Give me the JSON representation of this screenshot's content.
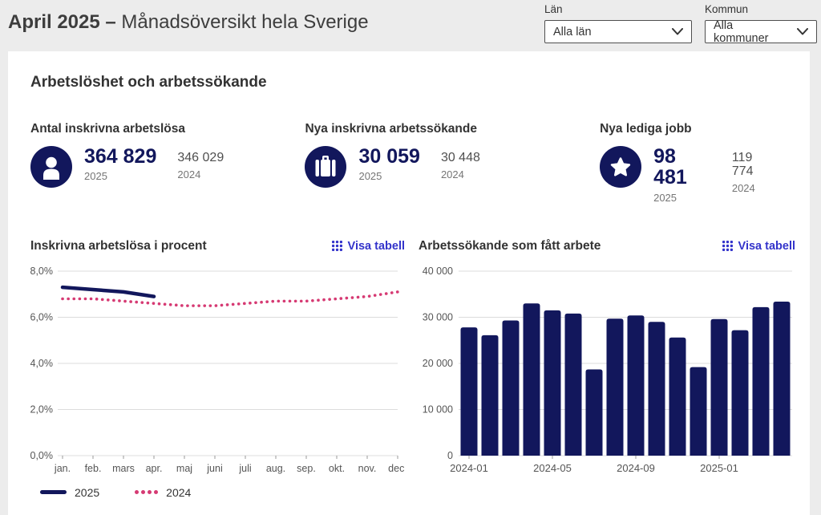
{
  "header": {
    "title_bold": "April 2025 –",
    "title_rest": "Månadsöversikt hela Sverige",
    "filters": [
      {
        "label": "Län",
        "value": "Alla län"
      },
      {
        "label": "Kommun",
        "value": "Alla kommuner"
      }
    ]
  },
  "section_title": "Arbetslöshet och arbetssökande",
  "kpis": [
    {
      "title": "Antal inskrivna arbetslösa",
      "icon": "person-icon",
      "current": "364 829",
      "current_year": "2025",
      "previous": "346 029",
      "previous_year": "2024"
    },
    {
      "title": "Nya inskrivna arbetssökande",
      "icon": "briefcase-icon",
      "current": "30 059",
      "current_year": "2025",
      "previous": "30 448",
      "previous_year": "2024"
    },
    {
      "title": "Nya lediga jobb",
      "icon": "star-icon",
      "current": "98 481",
      "current_year": "2025",
      "previous": "119 774",
      "previous_year": "2024"
    }
  ],
  "charts": {
    "visa_tabell_label": "Visa tabell"
  },
  "legend": [
    {
      "label": "2025",
      "style": "solid"
    },
    {
      "label": "2024",
      "style": "dotted"
    }
  ],
  "colors": {
    "navy": "#12175c",
    "pink": "#d63a73",
    "link": "#3434cb",
    "bg": "#ececec",
    "card": "#ffffff",
    "text": "#333333",
    "grid": "#dcdcdc"
  },
  "chart_data": [
    {
      "type": "line",
      "title": "Inskrivna arbetslösa i procent",
      "categories": [
        "jan.",
        "feb.",
        "mars",
        "apr.",
        "maj",
        "juni",
        "juli",
        "aug.",
        "sep.",
        "okt.",
        "nov.",
        "dec."
      ],
      "series": [
        {
          "name": "2025",
          "values": [
            7.3,
            7.2,
            7.1,
            6.9
          ],
          "color": "#12175c",
          "style": "solid"
        },
        {
          "name": "2024",
          "values": [
            6.8,
            6.8,
            6.7,
            6.6,
            6.5,
            6.5,
            6.6,
            6.7,
            6.7,
            6.8,
            6.9,
            7.1
          ],
          "color": "#d63a73",
          "style": "dotted"
        }
      ],
      "ylim": [
        0,
        8
      ],
      "yticks": [
        "0,0%",
        "2,0%",
        "4,0%",
        "6,0%",
        "8,0%"
      ],
      "grid": true,
      "legend_position": "bottom-left"
    },
    {
      "type": "bar",
      "title": "Arbetssökande som fått arbete",
      "categories": [
        "2024-01",
        "2024-02",
        "2024-03",
        "2024-04",
        "2024-05",
        "2024-06",
        "2024-07",
        "2024-08",
        "2024-09",
        "2024-10",
        "2024-11",
        "2024-12",
        "2025-01",
        "2025-02",
        "2025-03",
        "2025-04"
      ],
      "values": [
        27800,
        26100,
        29300,
        33000,
        31500,
        30800,
        18700,
        29700,
        30400,
        29000,
        25600,
        19200,
        29600,
        27200,
        32200,
        33400
      ],
      "xtick_labels": [
        "2024-01",
        "2024-05",
        "2024-09",
        "2025-01"
      ],
      "xtick_indices": [
        0,
        4,
        8,
        12
      ],
      "ylim": [
        0,
        40000
      ],
      "yticks": [
        "0",
        "10 000",
        "20 000",
        "30 000",
        "40 000"
      ],
      "bar_color": "#12175c",
      "grid": true
    }
  ]
}
